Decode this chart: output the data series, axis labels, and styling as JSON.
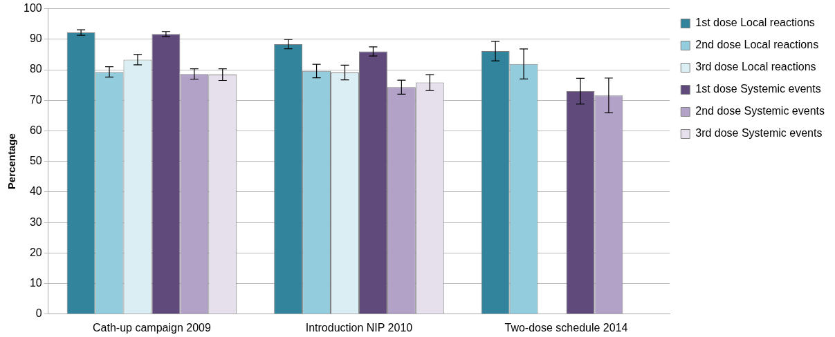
{
  "chart_data": {
    "type": "bar",
    "ylabel": "Percentage",
    "categories": [
      "Cath-up campaign 2009",
      "Introduction NIP 2010",
      "Two-dose schedule 2014"
    ],
    "series": [
      {
        "name": "1st dose Local reactions",
        "color": "#31849b",
        "values": [
          92.2,
          88.4,
          86.1
        ],
        "errors": [
          0.9,
          1.5,
          3.2
        ]
      },
      {
        "name": "2nd dose Local reactions",
        "color": "#93cddd",
        "values": [
          79.3,
          79.6,
          81.9
        ],
        "errors": [
          1.7,
          2.2,
          4.9
        ]
      },
      {
        "name": "3rd dose Local reactions",
        "color": "#daeef3",
        "values": [
          83.3,
          79.1,
          null
        ],
        "errors": [
          1.7,
          2.4,
          null
        ]
      },
      {
        "name": "1st dose Systemic events",
        "color": "#604a7b",
        "values": [
          91.7,
          86.0,
          73.0
        ],
        "errors": [
          0.8,
          1.5,
          4.2
        ]
      },
      {
        "name": "2nd dose Systemic events",
        "color": "#b2a2c7",
        "values": [
          78.6,
          74.3,
          71.6
        ],
        "errors": [
          1.7,
          2.3,
          5.7
        ]
      },
      {
        "name": "3rd dose Systemic events",
        "color": "#e5e0ec",
        "values": [
          78.4,
          75.8,
          null
        ],
        "errors": [
          1.9,
          2.6,
          null
        ]
      }
    ],
    "ylim": [
      0,
      100
    ],
    "yticks": [
      0,
      10,
      20,
      30,
      40,
      50,
      60,
      70,
      80,
      90,
      100
    ],
    "grid": "y",
    "legend": "right"
  }
}
